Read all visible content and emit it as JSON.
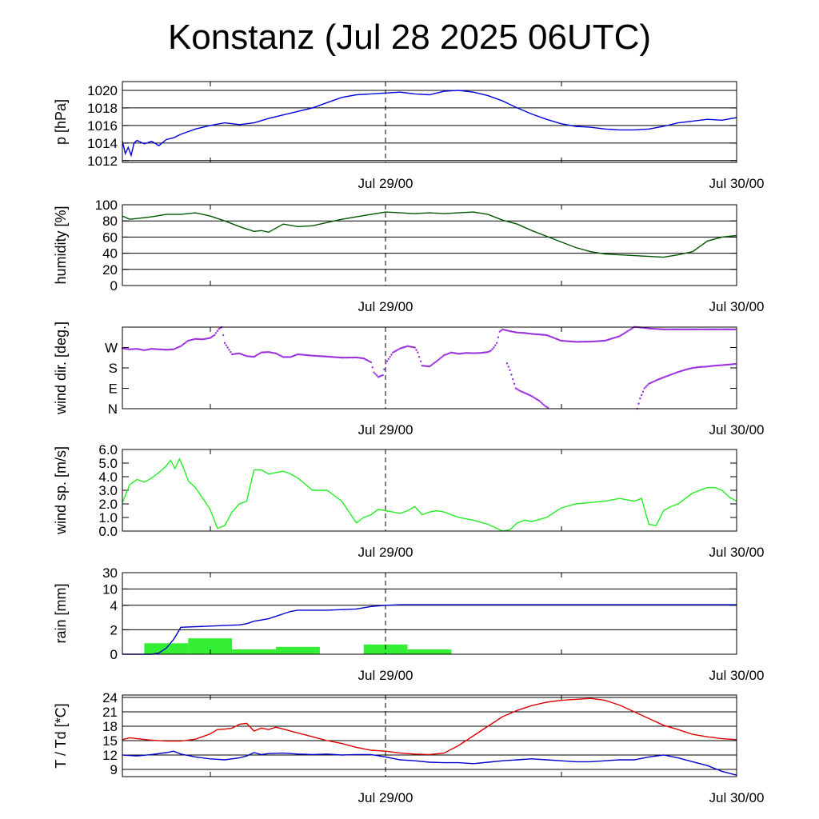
{
  "title": "Konstanz (Jul 28 2025 06UTC)",
  "chart_data": [
    {
      "type": "line",
      "ylabel": "p [hPa]",
      "ylim": [
        1011.8,
        1021
      ],
      "yticks": [
        1012,
        1014,
        1016,
        1018,
        1020
      ],
      "ytick_labels": [
        "1012",
        "1014",
        "1016",
        "1018",
        "1020"
      ],
      "grid": "horizontal",
      "x_tick_labels": [
        "Jul 29/00",
        "Jul 30/00"
      ],
      "xlim": [
        0,
        42
      ],
      "series": [
        {
          "color": "#0000dd",
          "x": [
            0,
            0.2,
            0.4,
            0.6,
            0.8,
            1,
            1.5,
            2,
            2.5,
            3,
            3.5,
            4,
            5,
            6,
            7,
            8,
            9,
            10,
            11,
            12,
            13,
            14,
            15,
            16,
            17,
            18,
            19,
            20,
            21,
            22,
            23,
            24,
            25,
            26,
            27,
            28,
            29,
            30,
            31,
            32,
            33,
            34,
            35,
            36,
            37,
            38,
            39,
            40,
            41,
            42
          ],
          "values": [
            1014.2,
            1012.8,
            1013.5,
            1012.6,
            1014.0,
            1014.3,
            1013.9,
            1014.2,
            1013.7,
            1014.4,
            1014.6,
            1015.0,
            1015.6,
            1016.0,
            1016.3,
            1016.1,
            1016.3,
            1016.8,
            1017.2,
            1017.6,
            1018.0,
            1018.6,
            1019.2,
            1019.5,
            1019.6,
            1019.7,
            1019.8,
            1019.6,
            1019.5,
            1019.9,
            1020.0,
            1019.8,
            1019.4,
            1018.8,
            1018.0,
            1017.3,
            1016.7,
            1016.2,
            1015.9,
            1015.8,
            1015.6,
            1015.5,
            1015.5,
            1015.6,
            1015.9,
            1016.3,
            1016.5,
            1016.7,
            1016.6,
            1016.9
          ]
        }
      ]
    },
    {
      "type": "line",
      "ylabel": "humidity [%]",
      "ylim": [
        0,
        100
      ],
      "yticks": [
        0,
        20,
        40,
        60,
        80,
        100
      ],
      "ytick_labels": [
        "0",
        "20",
        "40",
        "60",
        "80",
        "100"
      ],
      "grid": "horizontal",
      "x_tick_labels": [
        "Jul 29/00",
        "Jul 30/00"
      ],
      "xlim": [
        0,
        42
      ],
      "series": [
        {
          "color": "#005500",
          "x": [
            0,
            0.5,
            1,
            2,
            3,
            4,
            5,
            6,
            7,
            8,
            9,
            9.5,
            10,
            11,
            12,
            13,
            14,
            15,
            16,
            17,
            18,
            19,
            20,
            21,
            22,
            23,
            24,
            25,
            26,
            27,
            28,
            29,
            30,
            31,
            32,
            33,
            34,
            35,
            36,
            37,
            38,
            39,
            40,
            41,
            42
          ],
          "values": [
            86,
            82,
            83,
            85,
            88,
            88,
            90,
            86,
            80,
            73,
            67,
            68,
            66,
            76,
            73,
            74,
            78,
            82,
            85,
            88,
            91,
            90,
            89,
            90,
            89,
            90,
            91,
            88,
            81,
            76,
            68,
            61,
            54,
            47,
            42,
            39,
            38,
            37,
            36,
            35,
            38,
            42,
            55,
            60,
            62
          ]
        }
      ]
    },
    {
      "type": "scatter",
      "ylabel": "wind dir. [deg.]",
      "ylim": [
        0,
        360
      ],
      "yticks": [
        0,
        90,
        180,
        270
      ],
      "ytick_labels": [
        "N",
        "E",
        "S",
        "W"
      ],
      "grid": "none",
      "x_tick_labels": [
        "Jul 29/00",
        "Jul 30/00"
      ],
      "xlim": [
        0,
        42
      ],
      "series": [
        {
          "color": "#9b30e0",
          "x": [
            0,
            0.5,
            1,
            1.5,
            2,
            2.5,
            3,
            3.5,
            4,
            4.5,
            5,
            5.5,
            6,
            6.3,
            6.6,
            6.8,
            7,
            7.5,
            8,
            8.5,
            9,
            9.5,
            10,
            10.5,
            11,
            11.5,
            12,
            13,
            14,
            15,
            16,
            16.5,
            17,
            17.2,
            17.5,
            17.8,
            18,
            18.5,
            19,
            19.5,
            20,
            20.2,
            20.5,
            21,
            21.5,
            22,
            22.5,
            23,
            23.5,
            24,
            24.5,
            25,
            25.2,
            25.4,
            25.6,
            25.8,
            26,
            26.5,
            27,
            27.5,
            28,
            29,
            30,
            31,
            32,
            33,
            34,
            35,
            35.2,
            35.5,
            35.8,
            36,
            36.5,
            37,
            37.5,
            38,
            38.5,
            39,
            39.5,
            40,
            40.5,
            41,
            41.5,
            42
          ],
          "values": [
            266,
            262,
            264,
            258,
            264,
            262,
            260,
            262,
            276,
            300,
            308,
            306,
            312,
            325,
            352,
            360,
            290,
            240,
            244,
            232,
            229,
            248,
            250,
            244,
            228,
            228,
            240,
            234,
            230,
            225,
            226,
            222,
            205,
            160,
            140,
            148,
            200,
            248,
            266,
            276,
            270,
            248,
            190,
            186,
            210,
            236,
            248,
            242,
            246,
            245,
            246,
            250,
            256,
            270,
            290,
            340,
            350,
            342,
            336,
            334,
            330,
            325,
            300,
            295,
            296,
            300,
            320,
            360,
            360,
            358,
            356,
            354,
            352,
            350,
            350,
            350,
            350,
            350,
            350,
            350,
            350,
            350,
            350,
            350
          ]
        },
        {
          "color": "#9b30e0",
          "x": [
            26.3,
            26.5,
            26.7,
            26.9,
            27.2,
            27.5,
            28,
            28.5,
            28.9,
            29.2
          ],
          "values": [
            200,
            170,
            130,
            90,
            78,
            70,
            55,
            35,
            12,
            0
          ]
        },
        {
          "color": "#9b30e0",
          "x": [
            35.2,
            35.4,
            35.7,
            36,
            36.5,
            37,
            37.5,
            38,
            38.5,
            39,
            39.5,
            40,
            40.5,
            41,
            41.5,
            42
          ],
          "values": [
            0,
            45,
            90,
            110,
            125,
            138,
            150,
            162,
            172,
            180,
            184,
            186,
            190,
            192,
            195,
            198
          ]
        }
      ]
    },
    {
      "type": "line",
      "ylabel": "wind sp. [m/s]",
      "ylim": [
        0,
        6
      ],
      "yticks": [
        0,
        1,
        2,
        3,
        4,
        5,
        6
      ],
      "ytick_labels": [
        "0.0",
        "1.0",
        "2.0",
        "3.0",
        "4.0",
        "5.0",
        "6.0"
      ],
      "grid": "none",
      "x_tick_labels": [
        "Jul 29/00",
        "Jul 30/00"
      ],
      "xlim": [
        0,
        42
      ],
      "series": [
        {
          "color": "#22ee22",
          "x": [
            0,
            0.5,
            1,
            1.5,
            2,
            2.5,
            3,
            3.3,
            3.6,
            3.9,
            4.2,
            4.5,
            5,
            5.5,
            6,
            6.5,
            7,
            7.5,
            8,
            8.5,
            9,
            9.5,
            10,
            10.5,
            11,
            11.5,
            12,
            13,
            14,
            15,
            16,
            16.5,
            17,
            17.5,
            18,
            18.5,
            19,
            19.5,
            20,
            20.5,
            21,
            21.5,
            22,
            23,
            24,
            25,
            26,
            26.5,
            27,
            27.5,
            28,
            29,
            30,
            31,
            32,
            33,
            34,
            35,
            35.5,
            36,
            36.5,
            37,
            37.5,
            38,
            39,
            40,
            40.5,
            41,
            41.5,
            42
          ],
          "values": [
            2.1,
            3.4,
            3.8,
            3.6,
            3.9,
            4.3,
            4.8,
            5.2,
            4.6,
            5.3,
            4.6,
            3.7,
            3.2,
            2.4,
            1.6,
            0.2,
            0.4,
            1.4,
            2.0,
            2.2,
            4.5,
            4.5,
            4.2,
            4.3,
            4.4,
            4.2,
            3.9,
            3.0,
            3.0,
            2.2,
            0.6,
            1.0,
            1.2,
            1.6,
            1.5,
            1.4,
            1.3,
            1.5,
            1.8,
            1.2,
            1.4,
            1.5,
            1.4,
            1.0,
            0.8,
            0.5,
            0.0,
            0.1,
            0.6,
            0.8,
            0.7,
            1.0,
            1.7,
            2.0,
            2.1,
            2.2,
            2.4,
            2.2,
            2.4,
            0.5,
            0.4,
            1.5,
            1.8,
            2.0,
            2.8,
            3.2,
            3.2,
            3.0,
            2.5,
            2.2
          ]
        }
      ]
    },
    {
      "type": "bar",
      "ylabel": "rain [mm]",
      "ylim": [
        0,
        30
      ],
      "yscale": "nonlinear",
      "yticks": [
        0,
        2,
        4,
        10,
        30
      ],
      "ytick_labels": [
        "0",
        "2",
        "4",
        "10",
        "30"
      ],
      "grid": "horizontal",
      "x_tick_labels": [
        "Jul 29/00",
        "Jul 30/00"
      ],
      "xlim": [
        0,
        42
      ],
      "bar_color": "#33ee33",
      "bars": [
        {
          "start": 1.5,
          "end": 4.5,
          "value": 0.9
        },
        {
          "start": 4.5,
          "end": 7.5,
          "value": 1.3
        },
        {
          "start": 7.5,
          "end": 10.5,
          "value": 0.4
        },
        {
          "start": 10.5,
          "end": 13.5,
          "value": 0.6
        },
        {
          "start": 16.5,
          "end": 19.5,
          "value": 0.8
        },
        {
          "start": 19.5,
          "end": 22.5,
          "value": 0.4
        }
      ],
      "series": [
        {
          "color": "#0000cc",
          "x": [
            0,
            2,
            2.5,
            3,
            3.5,
            3.8,
            4,
            6,
            8,
            8.5,
            9,
            9.5,
            10,
            10.5,
            11,
            11.5,
            12,
            14,
            16,
            17,
            18,
            18.5,
            19,
            20,
            42
          ],
          "values": [
            0,
            0,
            0.1,
            0.5,
            1.2,
            1.8,
            2.2,
            2.3,
            2.4,
            2.5,
            2.7,
            2.8,
            2.9,
            3.1,
            3.3,
            3.5,
            3.6,
            3.6,
            3.7,
            3.9,
            4.0,
            4.1,
            4.2,
            4.2,
            4.2
          ]
        }
      ]
    },
    {
      "type": "line",
      "ylabel": "T / Td [*C]",
      "ylim": [
        7.5,
        24.5
      ],
      "yticks": [
        9,
        12,
        15,
        18,
        21,
        24
      ],
      "ytick_labels": [
        "9",
        "12",
        "15",
        "18",
        "21",
        "24"
      ],
      "grid": "horizontal",
      "x_tick_labels": [
        "Jul 29/00",
        "Jul 30/00"
      ],
      "xlim": [
        0,
        42
      ],
      "series": [
        {
          "color": "#dd0000",
          "x": [
            0,
            0.5,
            1,
            2,
            3,
            4,
            5,
            6,
            6.5,
            7,
            7.5,
            8,
            8.5,
            9,
            9.5,
            10,
            10.5,
            11,
            12,
            13,
            14,
            15,
            16,
            17,
            18,
            19,
            20,
            21,
            22,
            23,
            24,
            25,
            26,
            27,
            28,
            29,
            30,
            31,
            32,
            33,
            34,
            35,
            36,
            37,
            38,
            39,
            40,
            41,
            42
          ],
          "values": [
            15.2,
            15.6,
            15.4,
            15.1,
            14.9,
            14.9,
            15.3,
            16.4,
            17.3,
            17.4,
            17.6,
            18.4,
            18.6,
            17.0,
            17.6,
            17.3,
            17.8,
            17.4,
            16.6,
            15.8,
            15.0,
            14.4,
            13.6,
            13.0,
            12.8,
            12.4,
            12.2,
            12.1,
            12.4,
            14.0,
            16.0,
            18.0,
            20.0,
            21.3,
            22.3,
            23.0,
            23.4,
            23.6,
            23.8,
            23.4,
            22.4,
            21.0,
            19.6,
            18.2,
            17.3,
            16.3,
            15.8,
            15.4,
            15.2
          ]
        },
        {
          "color": "#0000cc",
          "x": [
            0,
            1,
            2,
            3,
            3.5,
            4,
            5,
            6,
            7,
            8,
            8.5,
            9,
            9.5,
            10,
            11,
            12,
            13,
            14,
            15,
            16,
            17,
            18,
            19,
            20,
            21,
            22,
            23,
            24,
            25,
            26,
            27,
            28,
            29,
            30,
            31,
            32,
            33,
            34,
            35,
            36,
            37,
            38,
            39,
            40,
            41,
            42
          ],
          "values": [
            12.0,
            11.8,
            12.1,
            12.5,
            12.8,
            12.2,
            11.6,
            11.2,
            11.0,
            11.4,
            11.8,
            12.5,
            12.1,
            12.3,
            12.4,
            12.2,
            12.1,
            12.2,
            12.0,
            12.1,
            12.1,
            11.6,
            11.0,
            10.8,
            10.5,
            10.4,
            10.4,
            10.2,
            10.5,
            10.8,
            11.0,
            11.2,
            11.0,
            10.8,
            10.6,
            10.6,
            10.8,
            11.0,
            11.0,
            11.6,
            12.0,
            11.4,
            10.6,
            9.8,
            8.6,
            7.8
          ]
        }
      ]
    }
  ]
}
